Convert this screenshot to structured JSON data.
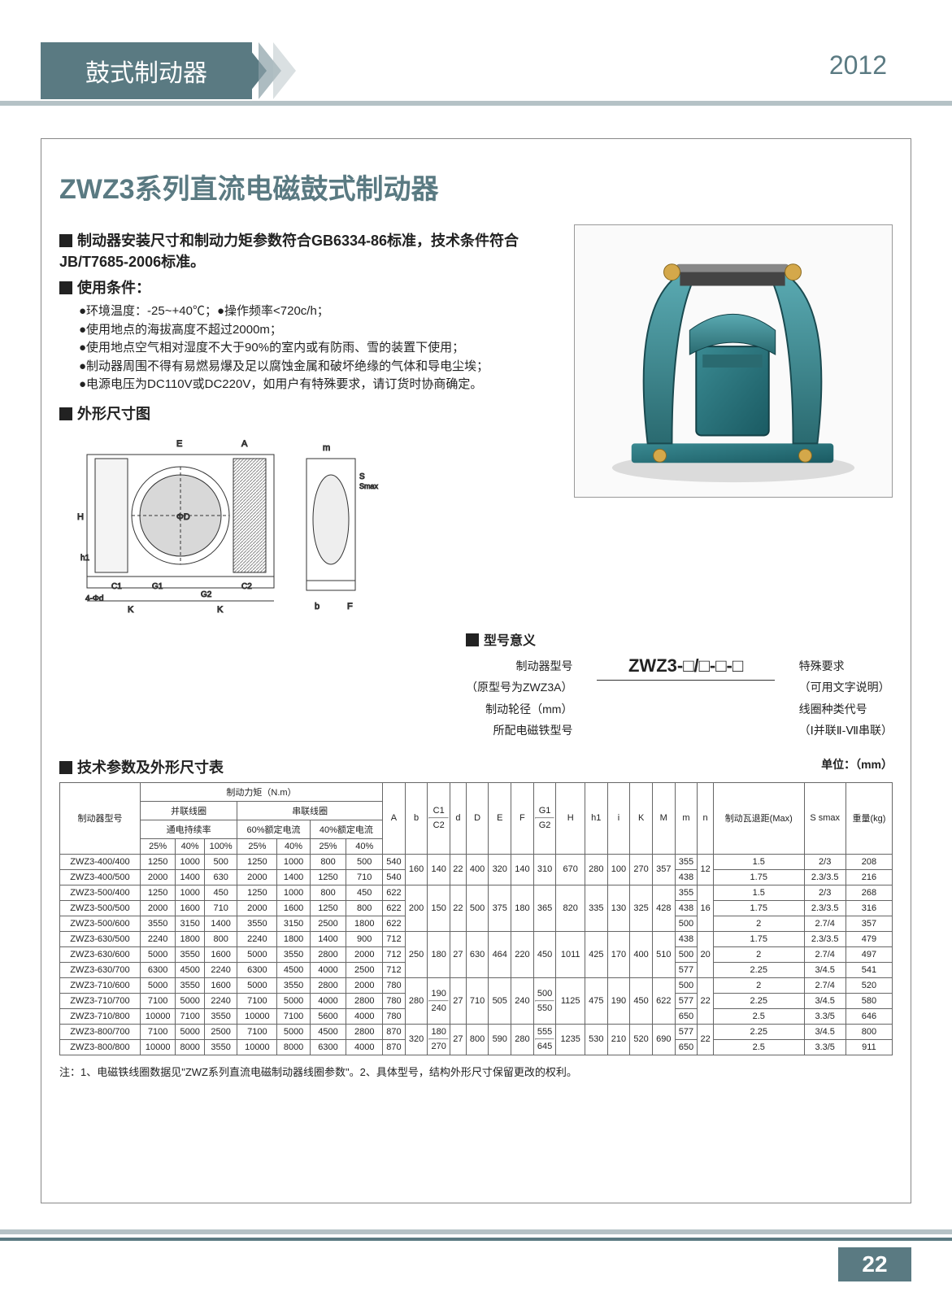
{
  "header": {
    "ribbon_title": "鼓式制动器",
    "year": "2012"
  },
  "page_number": "22",
  "main_title": "ZWZ3系列直流电磁鼓式制动器",
  "intro": {
    "std_heading": "制动器安装尺寸和制动力矩参数符合GB6334-86标准，技术条件符合JB/T7685-2006标准。",
    "cond_heading": "使用条件：",
    "conds": [
      "●环境温度：-25~+40℃；●操作频率<720c/h；",
      "●使用地点的海拔高度不超过2000m；",
      "●使用地点空气相对湿度不大于90%的室内或有防雨、雪的装置下使用；",
      "●制动器周围不得有易燃易爆及足以腐蚀金属和破坏绝缘的气体和导电尘埃；",
      "●电源电压为DC110V或DC220V，如用户有特殊要求，请订货时协商确定。"
    ]
  },
  "dim_heading": "外形尺寸图",
  "model_heading": "型号意义",
  "model_code": "ZWZ3-□/□-□-□",
  "model_left": [
    "制动器型号",
    "（原型号为ZWZ3A）",
    "制动轮径（mm）",
    "所配电磁铁型号"
  ],
  "model_right": [
    "特殊要求",
    "（可用文字说明）",
    "线圈种类代号",
    "（Ⅰ并联Ⅱ-Ⅶ串联）"
  ],
  "table_heading": "技术参数及外形尺寸表",
  "table_unit": "单位：（mm）",
  "table": {
    "top_headers": {
      "model": "制动器型号",
      "torque": "制动力矩（N.m）",
      "parallel": "并联线圈",
      "series": "串联线圈",
      "cur60": "60%额定电流",
      "cur40": "40%额定电流",
      "duty": "通电持续率",
      "p25": "25%",
      "p40": "40%",
      "p100": "100%",
      "cols": [
        "A",
        "b",
        "C1",
        "C2",
        "d",
        "D",
        "E",
        "F",
        "G1",
        "G2",
        "H",
        "h1",
        "i",
        "K",
        "M",
        "m",
        "n",
        "制动瓦退距(Max)",
        "S smax",
        "重量(kg)"
      ]
    },
    "rows": [
      {
        "model": "ZWZ3-400/400",
        "t": [
          "1250",
          "1000",
          "500",
          "1250",
          "1000",
          "800",
          "500"
        ],
        "A": "540",
        "b": "160",
        "c1": "140",
        "d": "22",
        "D": "400",
        "E": "320",
        "F": "140",
        "G1": "310",
        "H": "670",
        "h1": "280",
        "i": "100",
        "K": "270",
        "Mv": "357",
        "M": "355",
        "m": "12",
        "n": "1.5",
        "S": "2/3",
        "kg": "208"
      },
      {
        "model": "ZWZ3-400/500",
        "t": [
          "2000",
          "1400",
          "630",
          "2000",
          "1400",
          "1250",
          "710"
        ],
        "A": "540",
        "b": "160",
        "c1": "140",
        "d": "22",
        "D": "400",
        "E": "320",
        "F": "140",
        "G1": "310",
        "H": "670",
        "h1": "280",
        "i": "100",
        "K": "270",
        "Mv": "357",
        "M": "438",
        "m": "12",
        "n": "1.75",
        "S": "2.3/3.5",
        "kg": "216"
      },
      {
        "model": "ZWZ3-500/400",
        "t": [
          "1250",
          "1000",
          "450",
          "1250",
          "1000",
          "800",
          "450"
        ],
        "A": "622",
        "b": "200",
        "c1": "150",
        "d": "22",
        "D": "500",
        "E": "375",
        "F": "180",
        "G1": "365",
        "H": "820",
        "h1": "335",
        "i": "130",
        "K": "325",
        "Mv": "428",
        "M": "355",
        "m": "16",
        "n": "1.5",
        "S": "2/3",
        "kg": "268"
      },
      {
        "model": "ZWZ3-500/500",
        "t": [
          "2000",
          "1600",
          "710",
          "2000",
          "1600",
          "1250",
          "800"
        ],
        "A": "622",
        "b": "200",
        "c1": "150",
        "d": "22",
        "D": "500",
        "E": "375",
        "F": "180",
        "G1": "365",
        "H": "820",
        "h1": "335",
        "i": "130",
        "K": "325",
        "Mv": "428",
        "M": "438",
        "m": "16",
        "n": "1.75",
        "S": "2.3/3.5",
        "kg": "316"
      },
      {
        "model": "ZWZ3-500/600",
        "t": [
          "3550",
          "3150",
          "1400",
          "3550",
          "3150",
          "2500",
          "1800"
        ],
        "A": "622",
        "b": "200",
        "c1": "150",
        "d": "22",
        "D": "500",
        "E": "375",
        "F": "180",
        "G1": "365",
        "H": "820",
        "h1": "335",
        "i": "130",
        "K": "325",
        "Mv": "428",
        "M": "500",
        "m": "16",
        "n": "2",
        "S": "2.7/4",
        "kg": "357"
      },
      {
        "model": "ZWZ3-630/500",
        "t": [
          "2240",
          "1800",
          "800",
          "2240",
          "1800",
          "1400",
          "900"
        ],
        "A": "712",
        "b": "250",
        "c1": "180",
        "d": "27",
        "D": "630",
        "E": "464",
        "F": "220",
        "G1": "450",
        "H": "1011",
        "h1": "425",
        "i": "170",
        "K": "400",
        "Mv": "510",
        "M": "438",
        "m": "20",
        "n": "1.75",
        "S": "2.3/3.5",
        "kg": "479"
      },
      {
        "model": "ZWZ3-630/600",
        "t": [
          "5000",
          "3550",
          "1600",
          "5000",
          "3550",
          "2800",
          "2000"
        ],
        "A": "712",
        "b": "250",
        "c1": "180",
        "d": "27",
        "D": "630",
        "E": "464",
        "F": "220",
        "G1": "450",
        "H": "1011",
        "h1": "425",
        "i": "170",
        "K": "400",
        "Mv": "510",
        "M": "500",
        "m": "20",
        "n": "2",
        "S": "2.7/4",
        "kg": "497"
      },
      {
        "model": "ZWZ3-630/700",
        "t": [
          "6300",
          "4500",
          "2240",
          "6300",
          "4500",
          "4000",
          "2500"
        ],
        "A": "712",
        "b": "250",
        "c1": "180",
        "d": "27",
        "D": "630",
        "E": "464",
        "F": "220",
        "G1": "450",
        "H": "1011",
        "h1": "425",
        "i": "170",
        "K": "400",
        "Mv": "510",
        "M": "577",
        "m": "20",
        "n": "2.25",
        "S": "3/4.5",
        "kg": "541"
      },
      {
        "model": "ZWZ3-710/600",
        "t": [
          "5000",
          "3550",
          "1600",
          "5000",
          "3550",
          "2800",
          "2000"
        ],
        "A": "780",
        "b": "280",
        "c1": "190",
        "c2": "240",
        "d": "27",
        "D": "710",
        "E": "505",
        "F": "240",
        "G1": "500",
        "G2": "550",
        "H": "1125",
        "h1": "475",
        "i": "190",
        "K": "450",
        "Mv": "622",
        "M": "500",
        "m": "22",
        "n": "2",
        "S": "2.7/4",
        "kg": "520"
      },
      {
        "model": "ZWZ3-710/700",
        "t": [
          "7100",
          "5000",
          "2240",
          "7100",
          "5000",
          "4000",
          "2800"
        ],
        "A": "780",
        "b": "280",
        "c1": "190",
        "c2": "240",
        "d": "27",
        "D": "710",
        "E": "505",
        "F": "240",
        "G1": "500",
        "G2": "550",
        "H": "1125",
        "h1": "475",
        "i": "190",
        "K": "450",
        "Mv": "622",
        "M": "577",
        "m": "22",
        "n": "2.25",
        "S": "3/4.5",
        "kg": "580"
      },
      {
        "model": "ZWZ3-710/800",
        "t": [
          "10000",
          "7100",
          "3550",
          "10000",
          "7100",
          "5600",
          "4000"
        ],
        "A": "780",
        "b": "280",
        "c1": "190",
        "c2": "240",
        "d": "27",
        "D": "710",
        "E": "505",
        "F": "240",
        "G1": "500",
        "G2": "550",
        "H": "1125",
        "h1": "475",
        "i": "190",
        "K": "450",
        "Mv": "622",
        "M": "650",
        "m": "22",
        "n": "2.5",
        "S": "3.3/5",
        "kg": "646"
      },
      {
        "model": "ZWZ3-800/700",
        "t": [
          "7100",
          "5000",
          "2500",
          "7100",
          "5000",
          "4500",
          "2800"
        ],
        "A": "870",
        "b": "320",
        "c1": "180",
        "c2": "270",
        "d": "27",
        "D": "800",
        "E": "590",
        "F": "280",
        "G1": "555",
        "G2": "645",
        "H": "1235",
        "h1": "530",
        "i": "210",
        "K": "520",
        "Mv": "690",
        "M": "577",
        "m": "22",
        "n": "2.25",
        "S": "3/4.5",
        "kg": "800"
      },
      {
        "model": "ZWZ3-800/800",
        "t": [
          "10000",
          "8000",
          "3550",
          "10000",
          "8000",
          "6300",
          "4000"
        ],
        "A": "870",
        "b": "320",
        "c1": "180",
        "c2": "270",
        "d": "27",
        "D": "800",
        "E": "590",
        "F": "280",
        "G1": "555",
        "G2": "645",
        "H": "1235",
        "h1": "530",
        "i": "210",
        "K": "520",
        "Mv": "690",
        "M": "650",
        "m": "22",
        "n": "2.5",
        "S": "3.3/5",
        "kg": "911"
      }
    ]
  },
  "note": "注：1、电磁铁线圈数据见\"ZWZ系列直流电磁制动器线圈参数\"。2、具体型号，结构外形尺寸保留更改的权利。",
  "colors": {
    "accent": "#5a7a82",
    "light": "#b5c2c6",
    "border": "#666"
  }
}
